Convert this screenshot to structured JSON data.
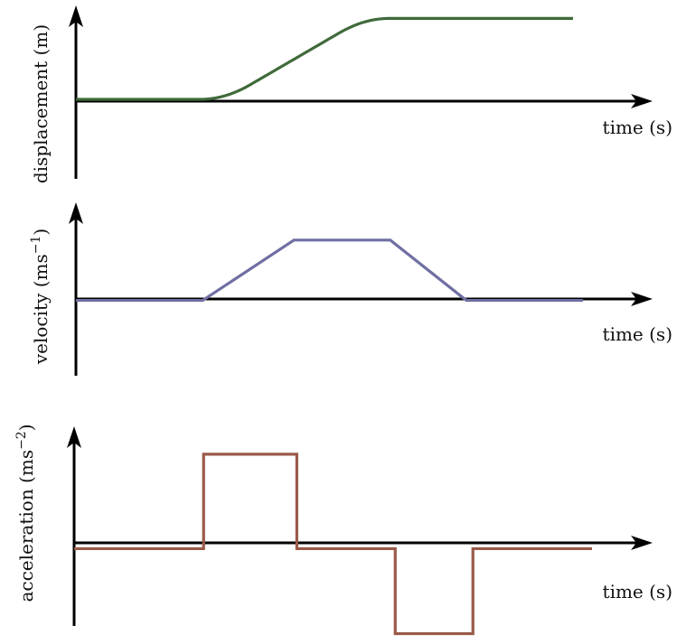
{
  "colors": {
    "displacement": "#3f6a3a",
    "velocity": "#6f6fa3",
    "acceleration": "#9a5a48"
  },
  "chart_data": [
    {
      "type": "line",
      "xlabel": "time (s)",
      "ylabel_main": "displacement (m)",
      "ylabel_sup": "",
      "x": [
        0,
        1,
        2,
        3,
        4,
        5,
        6,
        7,
        8,
        9,
        10,
        11,
        12,
        13,
        14,
        15,
        16,
        17,
        18,
        19,
        20,
        21,
        22,
        23,
        24,
        25,
        26,
        27,
        28,
        29,
        30,
        31,
        32,
        33,
        34,
        35,
        36,
        37,
        38,
        39,
        40,
        41,
        42,
        43,
        44,
        45,
        46,
        47,
        48,
        49,
        50,
        51,
        52,
        53,
        54,
        55,
        56,
        57,
        58,
        59,
        60,
        61,
        62,
        63,
        64,
        65,
        66,
        67,
        68,
        69,
        70,
        71,
        72,
        73,
        74,
        75,
        76,
        77,
        78,
        79,
        80,
        81,
        82,
        83,
        84,
        85,
        86,
        87,
        88,
        89,
        90,
        91,
        92,
        93,
        94,
        95,
        96,
        97,
        98,
        99,
        100
      ],
      "y": [
        0,
        0,
        0,
        0,
        0,
        0,
        0,
        0,
        0,
        0,
        0,
        0,
        0,
        0,
        0,
        0,
        0,
        0,
        0,
        0,
        0,
        0,
        0,
        0,
        0,
        0,
        0.006,
        0.024,
        0.054,
        0.096,
        0.15,
        0.216,
        0.294,
        0.384,
        0.486,
        0.6,
        0.72,
        0.84,
        0.96,
        1.08,
        1.2,
        1.32,
        1.44,
        1.56,
        1.68,
        1.8,
        1.92,
        2.04,
        2.16,
        2.28,
        2.4,
        2.52,
        2.64,
        2.76,
        2.874,
        2.976,
        3.066,
        3.144,
        3.21,
        3.264,
        3.306,
        3.336,
        3.354,
        3.36,
        3.36,
        3.36,
        3.36,
        3.36,
        3.36,
        3.36,
        3.36,
        3.36,
        3.36,
        3.36,
        3.36,
        3.36,
        3.36,
        3.36,
        3.36,
        3.36,
        3.36,
        3.36,
        3.36,
        3.36,
        3.36,
        3.36,
        3.36,
        3.36,
        3.36,
        3.36,
        3.36,
        3.36,
        3.36,
        3.36,
        3.36,
        3.36,
        3.36,
        3.36,
        3.36,
        3.36,
        3.36
      ],
      "xlim": [
        0,
        100
      ],
      "ylim": [
        -3.3,
        3.9
      ]
    },
    {
      "type": "line",
      "xlabel": "time (s)",
      "ylabel_main": "velocity (ms",
      "ylabel_sup": "−1",
      "x": [
        0,
        25,
        43,
        62,
        77,
        100
      ],
      "y": [
        0,
        0,
        0.12,
        0.12,
        0,
        0
      ],
      "xlim": [
        0,
        100
      ],
      "ylim": [
        -0.15,
        0.17
      ]
    },
    {
      "type": "line",
      "xlabel": "time (s)",
      "ylabel_main": "acceleration (ms",
      "ylabel_sup": "−2",
      "x": [
        0,
        25,
        25,
        43,
        43,
        62,
        62,
        77,
        77,
        100
      ],
      "y": [
        0,
        0,
        1,
        1,
        0,
        0,
        -0.9,
        -0.9,
        0,
        0
      ],
      "xlim": [
        0,
        100
      ],
      "ylim": [
        -1.0,
        1.2
      ]
    }
  ]
}
